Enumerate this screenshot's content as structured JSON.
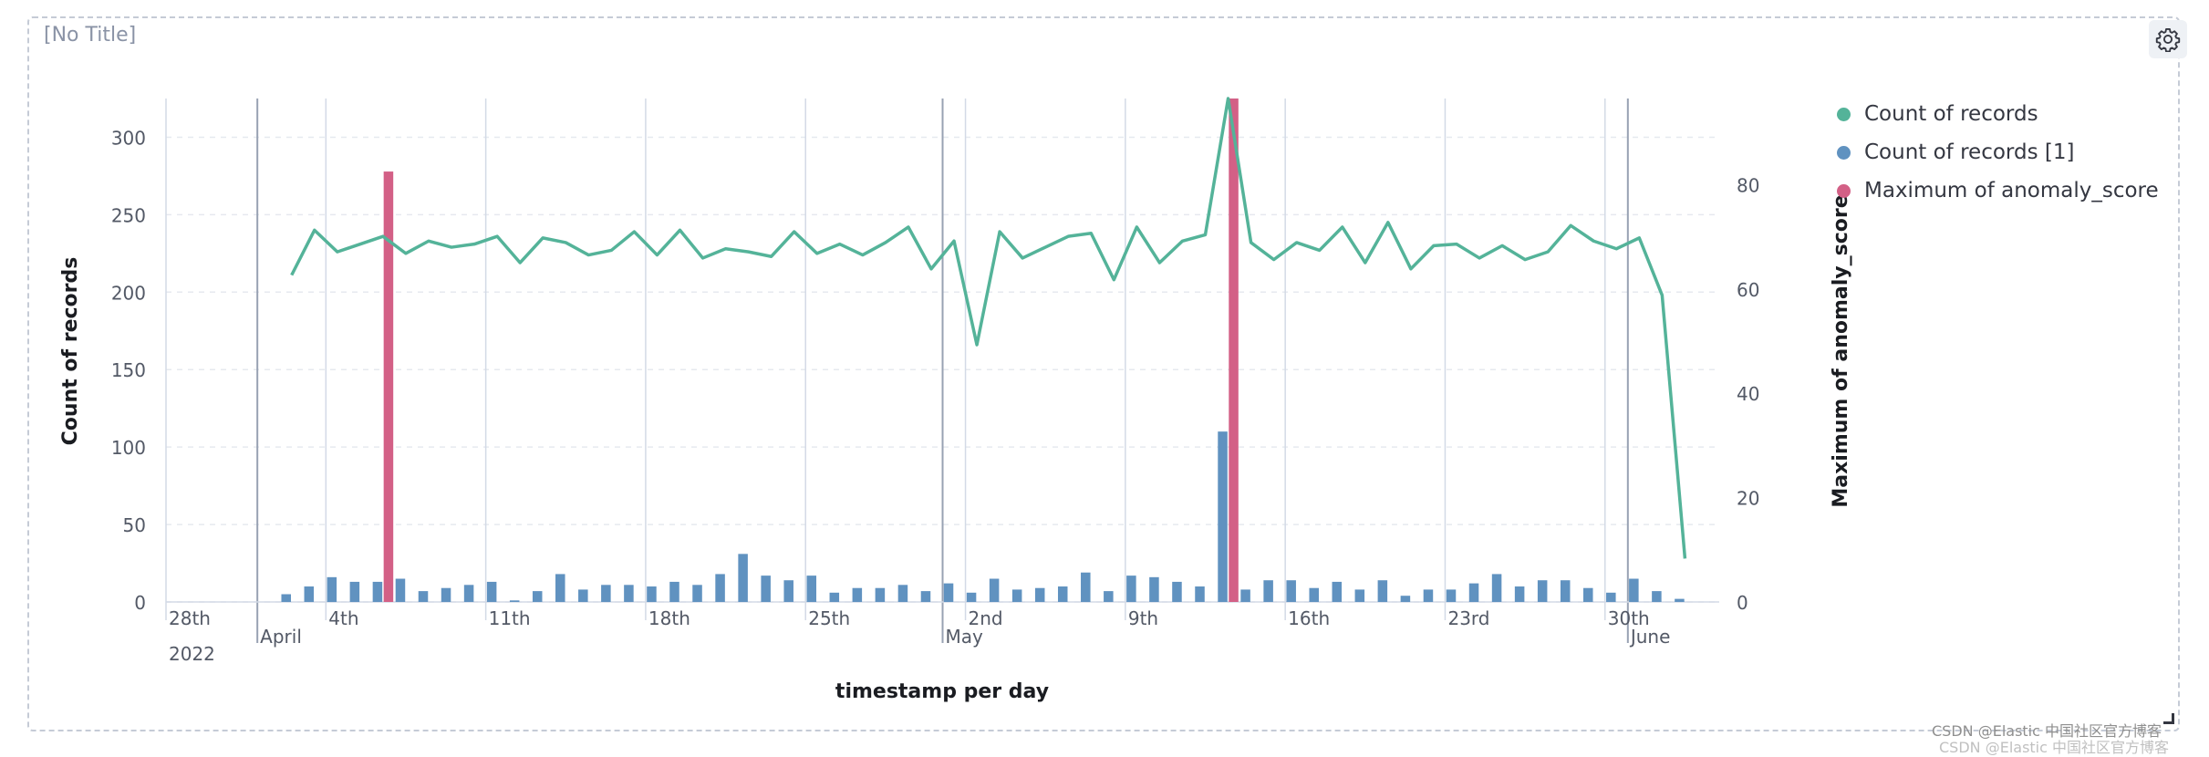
{
  "panel": {
    "title": "[No Title]",
    "settings_icon": "gear-icon"
  },
  "watermark": "CSDN @Elastic 中国社区官方博客",
  "colors": {
    "count_line": "#54b399",
    "count_bars": "#6092c0",
    "anomaly_bars": "#d36086",
    "grid": "#e6e9ef",
    "week_line": "#d3dae6",
    "month_line": "#98a2b3"
  },
  "chart_data": {
    "type": "bar",
    "xlabel": "timestamp per day",
    "ylabel_left": "Count of records",
    "ylabel_right": "Maximum of anomaly_score",
    "ylim_left": [
      0,
      325
    ],
    "ylim_right": [
      0,
      96.5
    ],
    "yticks_left": [
      "0",
      "50",
      "100",
      "150",
      "200",
      "250",
      "300"
    ],
    "yticks_right": [
      "0",
      "20",
      "40",
      "60",
      "80"
    ],
    "grid": true,
    "legend_position": "right",
    "x_start": "2022-03-28",
    "x_end": "2022-06-04",
    "x_ticks": [
      {
        "date": "2022-03-28",
        "label": "28th",
        "sublabel": "2022"
      },
      {
        "date": "2022-04-01",
        "label": "",
        "sublabel": "April",
        "month": true
      },
      {
        "date": "2022-04-04",
        "label": "4th"
      },
      {
        "date": "2022-04-11",
        "label": "11th"
      },
      {
        "date": "2022-04-18",
        "label": "18th"
      },
      {
        "date": "2022-04-25",
        "label": "25th"
      },
      {
        "date": "2022-05-01",
        "label": "",
        "sublabel": "May",
        "month": true
      },
      {
        "date": "2022-05-02",
        "label": "2nd"
      },
      {
        "date": "2022-05-09",
        "label": "9th"
      },
      {
        "date": "2022-05-16",
        "label": "16th"
      },
      {
        "date": "2022-05-23",
        "label": "23rd"
      },
      {
        "date": "2022-05-30",
        "label": "30th"
      },
      {
        "date": "2022-05-31",
        "label": "",
        "sublabel": "June",
        "month": true
      }
    ],
    "series": [
      {
        "name": "Count of records",
        "kind": "line",
        "axis": "left",
        "start_date": "2022-04-02",
        "values": [
          211,
          240,
          226,
          231,
          236,
          225,
          233,
          229,
          231,
          236,
          219,
          235,
          232,
          224,
          227,
          239,
          224,
          240,
          222,
          228,
          226,
          223,
          239,
          225,
          231,
          224,
          232,
          242,
          215,
          233,
          166,
          239,
          222,
          229,
          236,
          238,
          208,
          242,
          219,
          233,
          237,
          325,
          232,
          221,
          232,
          227,
          242,
          219,
          245,
          215,
          230,
          231,
          222,
          230,
          221,
          226,
          243,
          233,
          228,
          235,
          198,
          28
        ]
      },
      {
        "name": "Count of records [1]",
        "kind": "bar",
        "axis": "left",
        "start_date": "2022-04-01",
        "values": [
          0,
          5,
          10,
          16,
          13,
          13,
          15,
          7,
          9,
          11,
          13,
          1,
          7,
          18,
          8,
          11,
          11,
          10,
          13,
          11,
          18,
          31,
          17,
          14,
          17,
          6,
          9,
          9,
          11,
          7,
          12,
          6,
          15,
          8,
          9,
          10,
          19,
          7,
          17,
          16,
          13,
          10,
          110,
          8,
          14,
          14,
          9,
          13,
          8,
          14,
          4,
          8,
          8,
          12,
          18,
          10,
          14,
          14,
          9,
          6,
          15,
          7,
          2
        ]
      },
      {
        "name": "Maximum of anomaly_score",
        "kind": "bar",
        "axis": "right",
        "points": [
          {
            "date": "2022-04-06",
            "value": 82.5
          },
          {
            "date": "2022-05-13",
            "value": 96.5
          }
        ]
      }
    ]
  }
}
